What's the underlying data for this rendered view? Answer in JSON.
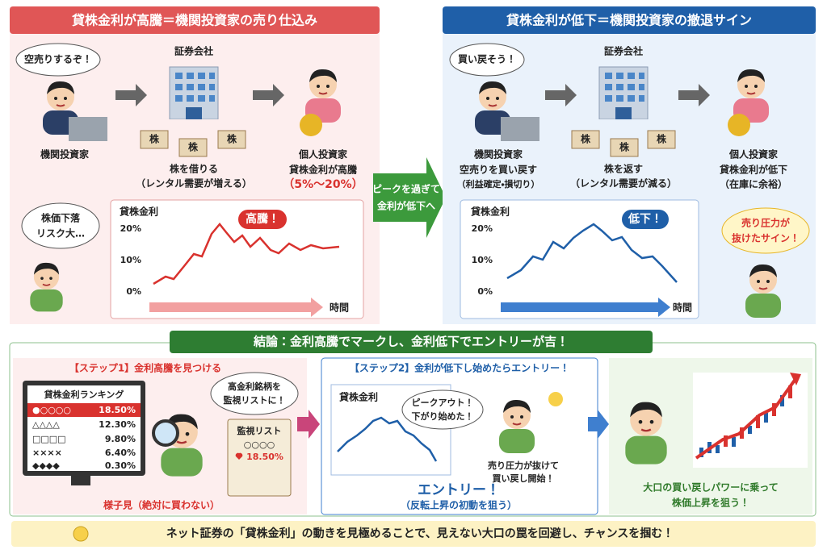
{
  "left_panel": {
    "title": "貸株金利が高騰＝機関投資家の売り仕込み",
    "speech": "空売りするぞ！",
    "investor": "機関投資家",
    "company": "証券会社",
    "stock": "株",
    "action": "株を借りる",
    "action_note": "（レンタル需要が増える）",
    "individual": "個人投資家",
    "individual_note": "貸株金利が高騰",
    "rate_range": "（5%〜20%）",
    "worry": [
      "株価下落",
      "リスク大…"
    ],
    "chart_title": "貸株金利",
    "chart_callout": "高騰！",
    "yticks": [
      "20%",
      "10%",
      "0%"
    ],
    "x_label": "時間"
  },
  "middle_arrow": [
    "ピークを過ぎて",
    "金利が低下へ"
  ],
  "right_panel": {
    "title": "貸株金利が低下＝機関投資家の撤退サイン",
    "speech": "買い戻そう！",
    "investor": "機関投資家",
    "investor_action": "空売りを買い戻す",
    "investor_note": "（利益確定・損切り）",
    "company": "証券会社",
    "stock": "株",
    "action": "株を返す",
    "action_note": "（レンタル需要が減る）",
    "individual": "個人投資家",
    "individual_note": "貸株金利が低下",
    "individual_sub": "（在庫に余裕）",
    "relief": [
      "売り圧力が",
      "抜けたサイン！"
    ],
    "chart_title": "貸株金利",
    "chart_callout": "低下！",
    "yticks": [
      "20%",
      "10%",
      "0%"
    ],
    "x_label": "時間"
  },
  "conclusion": "結論：金利高騰でマークし、金利低下でエントリーが吉！",
  "step1": {
    "title": "【ステップ1】金利高騰を見つける",
    "ranking_title": "貸株金利ランキング",
    "ranking": [
      [
        "●○○○○",
        "18.50%"
      ],
      [
        "△△△△",
        "12.30%"
      ],
      [
        "□□□□",
        "9.80%"
      ],
      [
        "××××",
        "6.40%"
      ],
      [
        "◆◆◆◆",
        "0.30%"
      ]
    ],
    "speech": [
      "高金利銘柄を",
      "監視リストに！"
    ],
    "watchlist_title": "監視リスト",
    "watchlist_item": "○○○○",
    "watchlist_rate": "18.50%",
    "caption": "様子見（絶対に買わない）"
  },
  "step2": {
    "title": "【ステップ2】金利が低下し始めたらエントリー！",
    "chart_title": "貸株金利",
    "speech": [
      "ピークアウト！",
      "下がり始めた！"
    ],
    "note": [
      "売り圧力が抜けて",
      "買い戻し開始！"
    ],
    "entry": "エントリー！",
    "entry_note": "（反転上昇の初動を狙う）"
  },
  "step3": {
    "caption": [
      "大口の買い戻しパワーに乗って",
      "株価上昇を狙う！"
    ]
  },
  "footer": "ネット証券の「貸株金利」の動きを見極めることで、見えない大口の罠を回避し、チャンスを掴む！"
}
